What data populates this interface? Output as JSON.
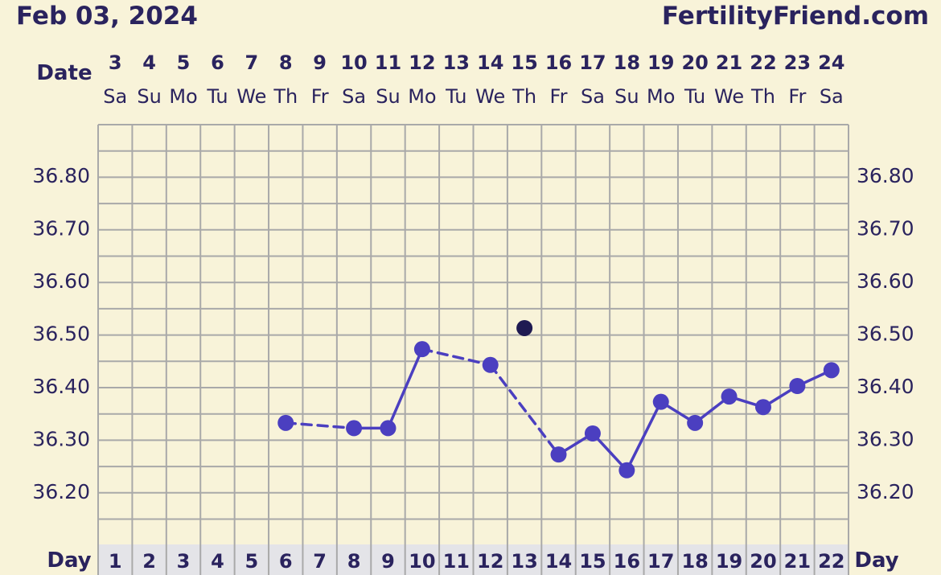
{
  "header": {
    "date": "Feb 03, 2024",
    "brand": "FertilityFriend.com"
  },
  "chart_data": {
    "type": "line",
    "row_labels": {
      "date": "Date",
      "day": "Day"
    },
    "dates": [
      "3",
      "4",
      "5",
      "6",
      "7",
      "8",
      "9",
      "10",
      "11",
      "12",
      "13",
      "14",
      "15",
      "16",
      "17",
      "18",
      "19",
      "20",
      "21",
      "22",
      "23",
      "24"
    ],
    "weekdays": [
      "Sa",
      "Su",
      "Mo",
      "Tu",
      "We",
      "Th",
      "Fr",
      "Sa",
      "Su",
      "Mo",
      "Tu",
      "We",
      "Th",
      "Fr",
      "Sa",
      "Su",
      "Mo",
      "Tu",
      "We",
      "Th",
      "Fr",
      "Sa"
    ],
    "cycle_days": [
      "1",
      "2",
      "3",
      "4",
      "5",
      "6",
      "7",
      "8",
      "9",
      "10",
      "11",
      "12",
      "13",
      "14",
      "15",
      "16",
      "17",
      "18",
      "19",
      "20",
      "21",
      "22"
    ],
    "y_ticks": [
      "36.80",
      "36.70",
      "36.60",
      "36.50",
      "36.40",
      "36.30",
      "36.20"
    ],
    "ylim": [
      36.1,
      36.9
    ],
    "series": [
      {
        "color": "#4b3fc0",
        "points": [
          {
            "day": 6,
            "temp": 36.33
          },
          {
            "day": 8,
            "temp": 36.32
          },
          {
            "day": 9,
            "temp": 36.32
          },
          {
            "day": 10,
            "temp": 36.47
          },
          {
            "day": 12,
            "temp": 36.44
          },
          {
            "day": 14,
            "temp": 36.27
          },
          {
            "day": 15,
            "temp": 36.31
          },
          {
            "day": 16,
            "temp": 36.24
          },
          {
            "day": 17,
            "temp": 36.37
          },
          {
            "day": 18,
            "temp": 36.33
          },
          {
            "day": 19,
            "temp": 36.38
          },
          {
            "day": 20,
            "temp": 36.36
          },
          {
            "day": 21,
            "temp": 36.4
          },
          {
            "day": 22,
            "temp": 36.43
          }
        ],
        "segments": [
          {
            "from": 6,
            "to": 8,
            "style": "dashed"
          },
          {
            "from": 8,
            "to": 9,
            "style": "solid"
          },
          {
            "from": 9,
            "to": 10,
            "style": "solid"
          },
          {
            "from": 10,
            "to": 12,
            "style": "dashed"
          },
          {
            "from": 12,
            "to": 14,
            "style": "dashed"
          },
          {
            "from": 14,
            "to": 15,
            "style": "solid"
          },
          {
            "from": 15,
            "to": 16,
            "style": "solid"
          },
          {
            "from": 16,
            "to": 17,
            "style": "solid"
          },
          {
            "from": 17,
            "to": 18,
            "style": "solid"
          },
          {
            "from": 18,
            "to": 19,
            "style": "solid"
          },
          {
            "from": 19,
            "to": 20,
            "style": "solid"
          },
          {
            "from": 20,
            "to": 21,
            "style": "solid"
          },
          {
            "from": 21,
            "to": 22,
            "style": "solid"
          }
        ]
      }
    ],
    "unconnected_points": [
      {
        "day": 13,
        "temp": 36.51,
        "color": "#1f1a52"
      }
    ],
    "colors": {
      "background": "#f8f3d9",
      "grid": "#a9a9a9",
      "text": "#2a235e",
      "day_row": "#e4e4e8"
    }
  }
}
